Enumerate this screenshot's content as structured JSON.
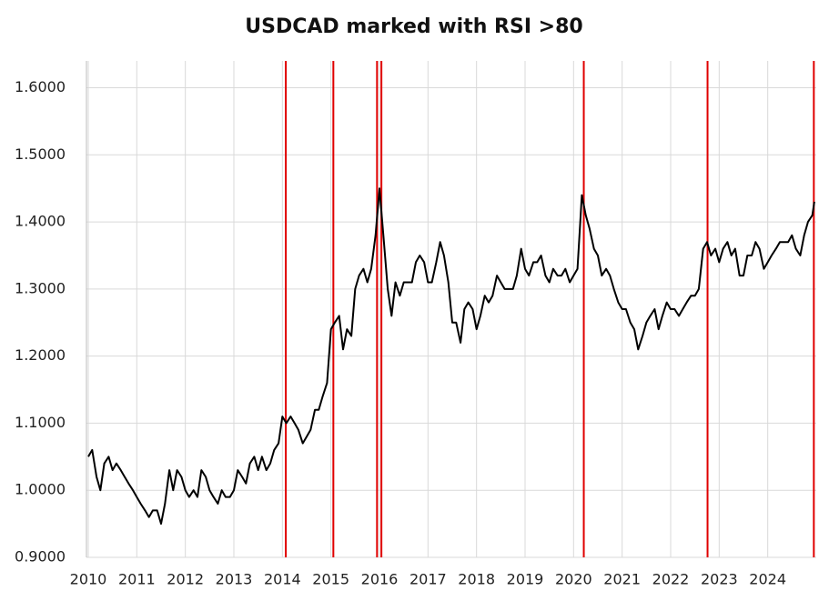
{
  "chart_data": {
    "type": "line",
    "title": "USDCAD marked with RSI >80",
    "x": [
      2010,
      2010.08,
      2010.17,
      2010.25,
      2010.33,
      2010.42,
      2010.5,
      2010.58,
      2010.67,
      2010.75,
      2010.83,
      2010.92,
      2011,
      2011.08,
      2011.17,
      2011.25,
      2011.33,
      2011.42,
      2011.5,
      2011.58,
      2011.67,
      2011.75,
      2011.83,
      2011.92,
      2012,
      2012.08,
      2012.17,
      2012.25,
      2012.33,
      2012.42,
      2012.5,
      2012.58,
      2012.67,
      2012.75,
      2012.83,
      2012.92,
      2013,
      2013.08,
      2013.17,
      2013.25,
      2013.33,
      2013.42,
      2013.5,
      2013.58,
      2013.67,
      2013.75,
      2013.83,
      2013.92,
      2014,
      2014.08,
      2014.17,
      2014.25,
      2014.33,
      2014.42,
      2014.5,
      2014.58,
      2014.67,
      2014.75,
      2014.83,
      2014.92,
      2015,
      2015.08,
      2015.17,
      2015.25,
      2015.33,
      2015.42,
      2015.5,
      2015.58,
      2015.67,
      2015.75,
      2015.83,
      2015.92,
      2016,
      2016.08,
      2016.17,
      2016.25,
      2016.33,
      2016.42,
      2016.5,
      2016.58,
      2016.67,
      2016.75,
      2016.83,
      2016.92,
      2017,
      2017.08,
      2017.17,
      2017.25,
      2017.33,
      2017.42,
      2017.5,
      2017.58,
      2017.67,
      2017.75,
      2017.83,
      2017.92,
      2018,
      2018.08,
      2018.17,
      2018.25,
      2018.33,
      2018.42,
      2018.5,
      2018.58,
      2018.67,
      2018.75,
      2018.83,
      2018.92,
      2019,
      2019.08,
      2019.17,
      2019.25,
      2019.33,
      2019.42,
      2019.5,
      2019.58,
      2019.67,
      2019.75,
      2019.83,
      2019.92,
      2020,
      2020.08,
      2020.17,
      2020.25,
      2020.33,
      2020.42,
      2020.5,
      2020.58,
      2020.67,
      2020.75,
      2020.83,
      2020.92,
      2021,
      2021.08,
      2021.17,
      2021.25,
      2021.33,
      2021.42,
      2021.5,
      2021.58,
      2021.67,
      2021.75,
      2021.83,
      2021.92,
      2022,
      2022.08,
      2022.17,
      2022.25,
      2022.33,
      2022.42,
      2022.5,
      2022.58,
      2022.67,
      2022.75,
      2022.83,
      2022.92,
      2023,
      2023.08,
      2023.17,
      2023.25,
      2023.33,
      2023.42,
      2023.5,
      2023.58,
      2023.67,
      2023.75,
      2023.83,
      2023.92,
      2024,
      2024.08,
      2024.17,
      2024.25,
      2024.33,
      2024.42,
      2024.5,
      2024.58,
      2024.67,
      2024.75,
      2024.83,
      2024.92,
      2024.96
    ],
    "series": [
      {
        "name": "USDCAD",
        "color": "#000000",
        "values": [
          1.05,
          1.06,
          1.02,
          1.0,
          1.04,
          1.05,
          1.03,
          1.04,
          1.03,
          1.02,
          1.01,
          1.0,
          0.99,
          0.98,
          0.97,
          0.96,
          0.97,
          0.97,
          0.95,
          0.98,
          1.03,
          1.0,
          1.03,
          1.02,
          1.0,
          0.99,
          1.0,
          0.99,
          1.03,
          1.02,
          1.0,
          0.99,
          0.98,
          1.0,
          0.99,
          0.99,
          1.0,
          1.03,
          1.02,
          1.01,
          1.04,
          1.05,
          1.03,
          1.05,
          1.03,
          1.04,
          1.06,
          1.07,
          1.11,
          1.1,
          1.11,
          1.1,
          1.09,
          1.07,
          1.08,
          1.09,
          1.12,
          1.12,
          1.14,
          1.16,
          1.24,
          1.25,
          1.26,
          1.21,
          1.24,
          1.23,
          1.3,
          1.32,
          1.33,
          1.31,
          1.33,
          1.38,
          1.45,
          1.38,
          1.3,
          1.26,
          1.31,
          1.29,
          1.31,
          1.31,
          1.31,
          1.34,
          1.35,
          1.34,
          1.31,
          1.31,
          1.34,
          1.37,
          1.35,
          1.31,
          1.25,
          1.25,
          1.22,
          1.27,
          1.28,
          1.27,
          1.24,
          1.26,
          1.29,
          1.28,
          1.29,
          1.32,
          1.31,
          1.3,
          1.3,
          1.3,
          1.32,
          1.36,
          1.33,
          1.32,
          1.34,
          1.34,
          1.35,
          1.32,
          1.31,
          1.33,
          1.32,
          1.32,
          1.33,
          1.31,
          1.32,
          1.33,
          1.44,
          1.41,
          1.39,
          1.36,
          1.35,
          1.32,
          1.33,
          1.32,
          1.3,
          1.28,
          1.27,
          1.27,
          1.25,
          1.24,
          1.21,
          1.23,
          1.25,
          1.26,
          1.27,
          1.24,
          1.26,
          1.28,
          1.27,
          1.27,
          1.26,
          1.27,
          1.28,
          1.29,
          1.29,
          1.3,
          1.36,
          1.37,
          1.35,
          1.36,
          1.34,
          1.36,
          1.37,
          1.35,
          1.36,
          1.32,
          1.32,
          1.35,
          1.35,
          1.37,
          1.36,
          1.33,
          1.34,
          1.35,
          1.36,
          1.37,
          1.37,
          1.37,
          1.38,
          1.36,
          1.35,
          1.38,
          1.4,
          1.41,
          1.43
        ]
      }
    ],
    "markers": {
      "color": "#e00000",
      "x": [
        2014.07,
        2015.05,
        2015.95,
        2016.04,
        2020.21,
        2022.76,
        2024.95
      ]
    },
    "xlim": [
      2010,
      2025
    ],
    "xticks": [
      2010,
      2011,
      2012,
      2013,
      2014,
      2015,
      2016,
      2017,
      2018,
      2019,
      2020,
      2021,
      2022,
      2023,
      2024
    ],
    "ylim": [
      0.9,
      1.64
    ],
    "yticks": [
      {
        "value": 0.9,
        "label": "0.9000"
      },
      {
        "value": 1.0,
        "label": "1.0000"
      },
      {
        "value": 1.1,
        "label": "1.1000"
      },
      {
        "value": 1.2,
        "label": "1.2000"
      },
      {
        "value": 1.3,
        "label": "1.3000"
      },
      {
        "value": 1.4,
        "label": "1.4000"
      },
      {
        "value": 1.5,
        "label": "1.5000"
      },
      {
        "value": 1.6,
        "label": "1.6000"
      }
    ],
    "grid": true
  }
}
